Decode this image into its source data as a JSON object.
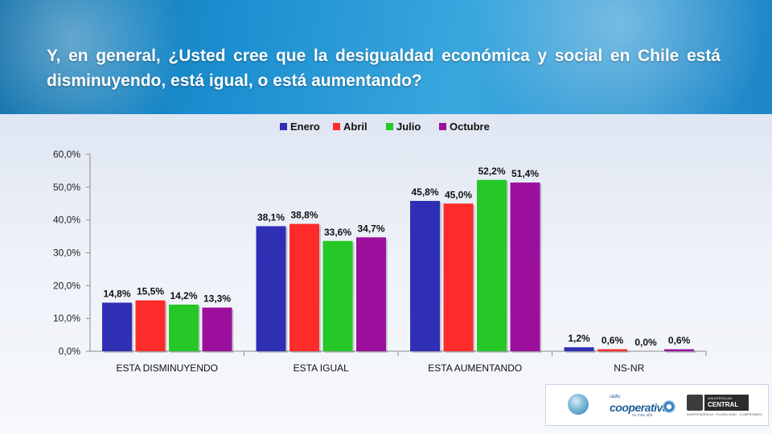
{
  "header": {
    "question": "Y, en general, ¿Usted cree que la desigualdad económica y social en Chile está disminuyendo, está igual, o está aumentando?"
  },
  "chart_data": {
    "type": "bar",
    "title": "",
    "xlabel": "",
    "ylabel": "",
    "categories": [
      "ESTA DISMINUYENDO",
      "ESTA IGUAL",
      "ESTA AUMENTANDO",
      "NS-NR"
    ],
    "series": [
      {
        "name": "Enero",
        "color": "#2f2fb6",
        "values": [
          14.8,
          38.1,
          45.8,
          1.2
        ],
        "labels": [
          "14,8%",
          "38,1%",
          "45,8%",
          "1,2%"
        ]
      },
      {
        "name": "Abril",
        "color": "#fe2b2b",
        "values": [
          15.5,
          38.8,
          45.0,
          0.6
        ],
        "labels": [
          "15,5%",
          "38,8%",
          "45,0%",
          "0,6%"
        ]
      },
      {
        "name": "Julio",
        "color": "#26c827",
        "values": [
          14.2,
          33.6,
          52.2,
          0.0
        ],
        "labels": [
          "14,2%",
          "33,6%",
          "52,2%",
          "0,0%"
        ]
      },
      {
        "name": "Octubre",
        "color": "#9c0f9c",
        "values": [
          13.3,
          34.7,
          51.4,
          0.6
        ],
        "labels": [
          "13,3%",
          "34,7%",
          "51,4%",
          "0,6%"
        ]
      }
    ],
    "yticks": [
      "0,0%",
      "10,0%",
      "20,0%",
      "30,0%",
      "40,0%",
      "50,0%",
      "60,0%"
    ],
    "ylim": [
      0,
      60
    ],
    "grid": false,
    "legend": "top-center"
  },
  "logos": {
    "coop_small": "radio",
    "coop_name": "cooperativa",
    "coop_tag": "va más allá",
    "uc_top": "UNIVERSIDAD",
    "uc_name": "CENTRAL",
    "uc_sub": "INDEPENDENCIA · PLURALISMO · COMPROMISO"
  }
}
